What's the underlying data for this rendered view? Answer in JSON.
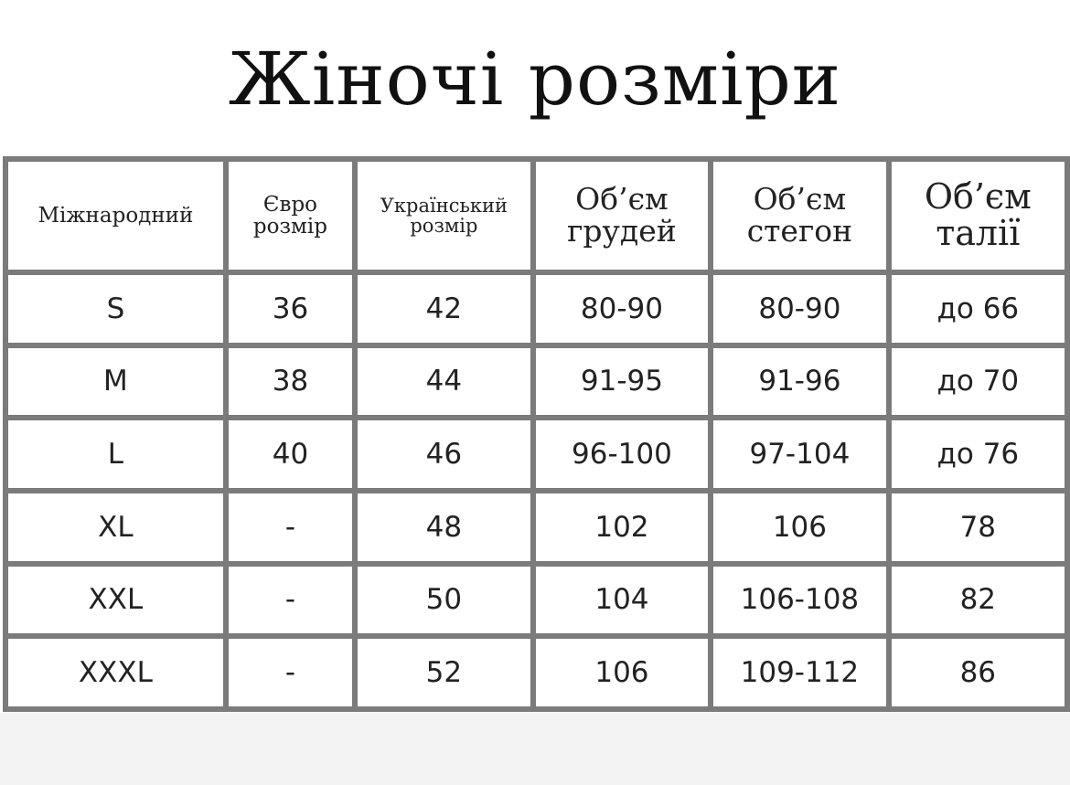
{
  "title": "Жіночі розміри",
  "headers": [
    "Міжнародний",
    "Євро розмір",
    "Український розмір",
    "Об’єм грудей",
    "Об’єм стегон",
    "Об’єм талії"
  ],
  "rows": [
    [
      "S",
      "36",
      "42",
      "80-90",
      "80-90",
      "до 66"
    ],
    [
      "M",
      "38",
      "44",
      "91-95",
      "91-96",
      "до 70"
    ],
    [
      "L",
      "40",
      "46",
      "96-100",
      "97-104",
      "до 76"
    ],
    [
      "XL",
      "-",
      "48",
      "102",
      "106",
      "78"
    ],
    [
      "XXL",
      "-",
      "50",
      "104",
      "106-108",
      "82"
    ],
    [
      "XXXL",
      "-",
      "52",
      "106",
      "109-112",
      "86"
    ]
  ]
}
